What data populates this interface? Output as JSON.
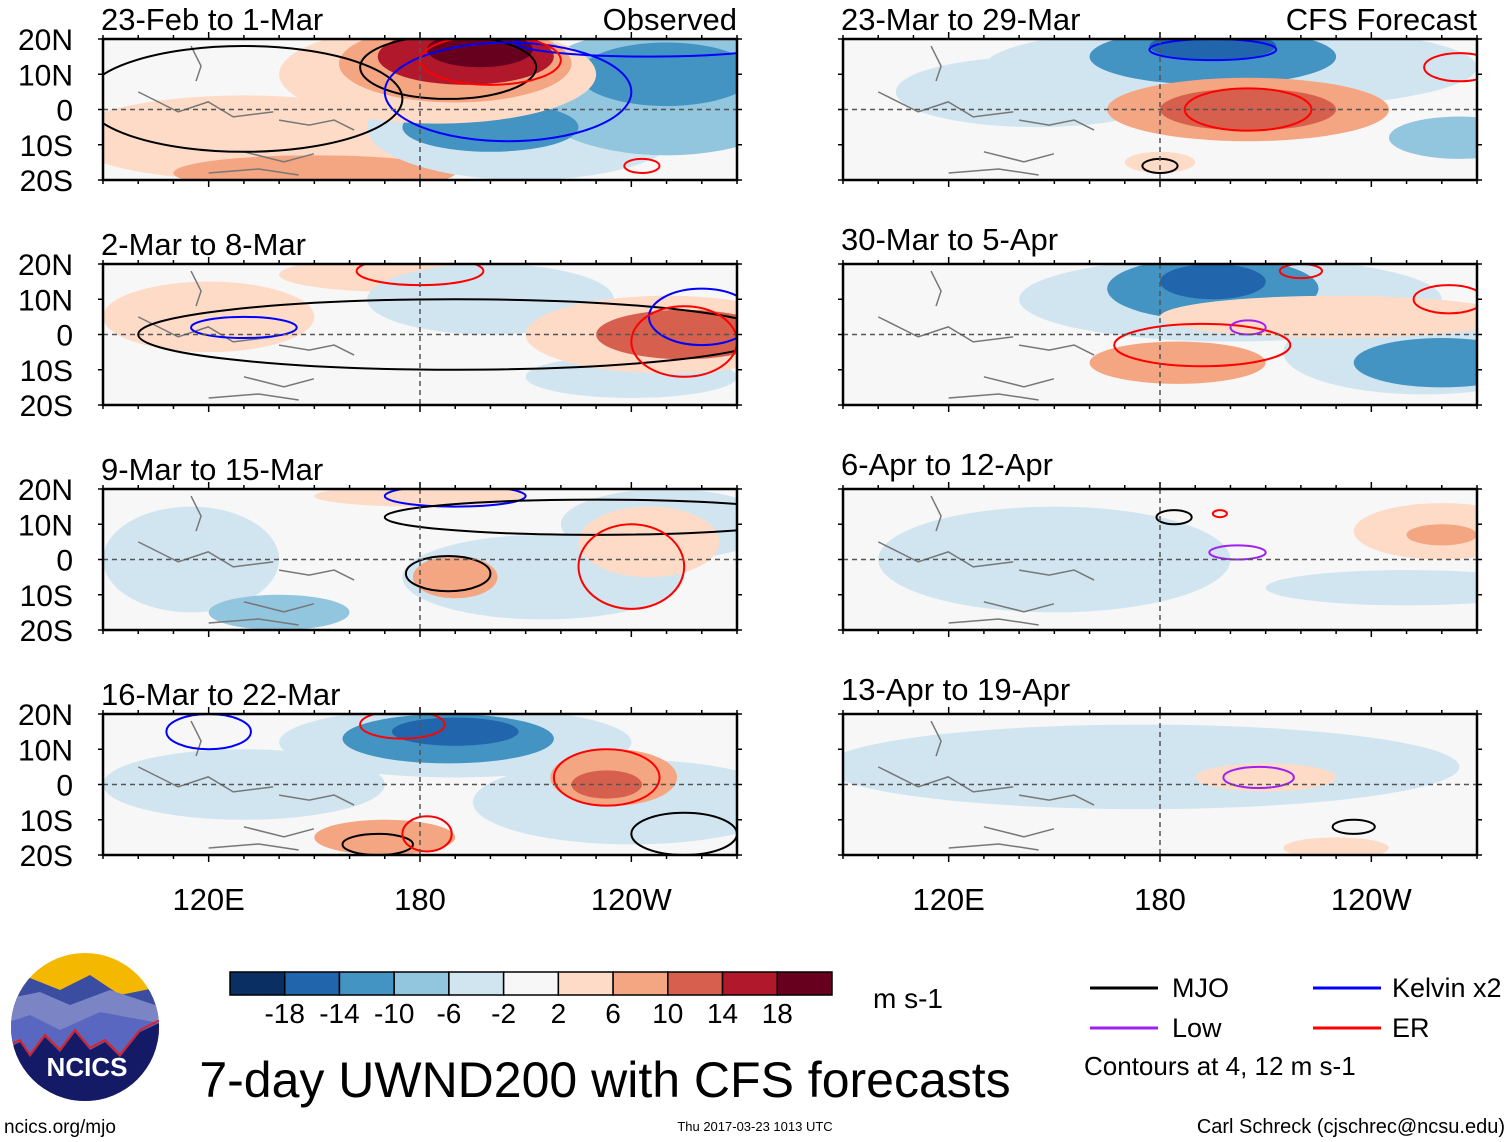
{
  "figure": {
    "title": "7-day UWND200 with CFS forecasts",
    "website": "ncics.org/mjo",
    "timestamp": "Thu 2017-03-23 1013 UTC",
    "author": "Carl Schreck (cjschrec@ncsu.edu)",
    "logo_text": "NCICS",
    "observed_label": "Observed",
    "forecast_label": "CFS Forecast"
  },
  "colorbar": {
    "units": "m s-1",
    "ticks": [
      "-18",
      "-14",
      "-10",
      "-6",
      "-2",
      "2",
      "6",
      "10",
      "14",
      "18"
    ],
    "bounds": [
      -18,
      -14,
      -10,
      -6,
      -2,
      2,
      6,
      10,
      14,
      18
    ],
    "colors": [
      "#0a2f63",
      "#2166ac",
      "#4393c3",
      "#92c5de",
      "#d1e5f0",
      "#f7f7f7",
      "#fddbc7",
      "#f4a582",
      "#d6604d",
      "#b2182b",
      "#67001f"
    ]
  },
  "legend": {
    "items": [
      {
        "label": "MJO",
        "color": "#000000"
      },
      {
        "label": "Kelvin x2",
        "color": "#0000ff"
      },
      {
        "label": "Low",
        "color": "#a020f0"
      },
      {
        "label": "ER",
        "color": "#ff0000"
      }
    ],
    "note": "Contours at 4, 12 m s-1"
  },
  "axes": {
    "lat_labels": [
      "20N",
      "10N",
      "0",
      "10S",
      "20S"
    ],
    "lat_values": [
      20,
      10,
      0,
      -10,
      -20
    ],
    "lon_labels": [
      "120E",
      "180",
      "120W"
    ],
    "lon_values": [
      120,
      180,
      240
    ],
    "lon_range": [
      90,
      270
    ],
    "lat_range": [
      -20,
      20
    ]
  },
  "chart_data": [
    {
      "type": "heatmap",
      "title": "23-Feb to 1-Mar",
      "column": "observed",
      "fill": [
        {
          "lon": 130,
          "lat": -8,
          "rlon": 50,
          "rlat": 12,
          "v": 4
        },
        {
          "lon": 150,
          "lat": -18,
          "rlon": 40,
          "rlat": 5,
          "v": 8
        },
        {
          "lon": 210,
          "lat": -5,
          "rlon": 45,
          "rlat": 15,
          "v": -6
        },
        {
          "lon": 250,
          "lat": 5,
          "rlon": 40,
          "rlat": 18,
          "v": -8
        },
        {
          "lon": 250,
          "lat": 10,
          "rlon": 25,
          "rlat": 9,
          "v": -14
        },
        {
          "lon": 200,
          "lat": -5,
          "rlon": 25,
          "rlat": 7,
          "v": -12
        },
        {
          "lon": 185,
          "lat": 10,
          "rlon": 45,
          "rlat": 14,
          "v": 4
        },
        {
          "lon": 190,
          "lat": 13,
          "rlon": 33,
          "rlat": 11,
          "v": 8
        },
        {
          "lon": 193,
          "lat": 15,
          "rlon": 25,
          "rlat": 8,
          "v": 14
        },
        {
          "lon": 197,
          "lat": 17,
          "rlon": 15,
          "rlat": 5,
          "v": 20
        }
      ],
      "contours": [
        {
          "kind": "MJO",
          "lon": 130,
          "lat": 3,
          "rlon": 45,
          "rlat": 15
        },
        {
          "kind": "MJO",
          "lon": 188,
          "lat": 12,
          "rlon": 25,
          "rlat": 9
        },
        {
          "kind": "Kelvin x2",
          "lon": 205,
          "lat": 5,
          "rlon": 35,
          "rlat": 14
        },
        {
          "kind": "Kelvin x2",
          "lon": 245,
          "lat": 19,
          "rlon": 38,
          "rlat": 4
        },
        {
          "kind": "ER",
          "lon": 200,
          "lat": 14,
          "rlon": 20,
          "rlat": 7
        },
        {
          "kind": "ER",
          "lon": 243,
          "lat": -16,
          "rlon": 5,
          "rlat": 2
        }
      ]
    },
    {
      "type": "heatmap",
      "title": "23-Mar to 29-Mar",
      "column": "forecast",
      "fill": [
        {
          "lon": 145,
          "lat": 5,
          "rlon": 40,
          "rlat": 10,
          "v": -4
        },
        {
          "lon": 200,
          "lat": 12,
          "rlon": 70,
          "rlat": 12,
          "v": -6
        },
        {
          "lon": 195,
          "lat": 15,
          "rlon": 35,
          "rlat": 8,
          "v": -12
        },
        {
          "lon": 195,
          "lat": 18,
          "rlon": 18,
          "rlat": 4,
          "v": -18
        },
        {
          "lon": 265,
          "lat": -8,
          "rlon": 20,
          "rlat": 6,
          "v": -8
        },
        {
          "lon": 205,
          "lat": 0,
          "rlon": 40,
          "rlat": 9,
          "v": 6
        },
        {
          "lon": 205,
          "lat": 0,
          "rlon": 25,
          "rlat": 6,
          "v": 12
        },
        {
          "lon": 180,
          "lat": -15,
          "rlon": 10,
          "rlat": 3,
          "v": 4
        }
      ],
      "contours": [
        {
          "kind": "ER",
          "lon": 205,
          "lat": 0,
          "rlon": 18,
          "rlat": 6
        },
        {
          "kind": "Kelvin x2",
          "lon": 195,
          "lat": 17,
          "rlon": 18,
          "rlat": 3
        },
        {
          "kind": "ER",
          "lon": 265,
          "lat": 12,
          "rlon": 10,
          "rlat": 4
        },
        {
          "kind": "MJO",
          "lon": 180,
          "lat": -16,
          "rlon": 5,
          "rlat": 2
        }
      ]
    },
    {
      "type": "heatmap",
      "title": "2-Mar to 8-Mar",
      "column": "observed",
      "fill": [
        {
          "lon": 120,
          "lat": 5,
          "rlon": 30,
          "rlat": 10,
          "v": 3
        },
        {
          "lon": 175,
          "lat": 17,
          "rlon": 35,
          "rlat": 5,
          "v": 4
        },
        {
          "lon": 200,
          "lat": 10,
          "rlon": 35,
          "rlat": 10,
          "v": -4
        },
        {
          "lon": 240,
          "lat": -12,
          "rlon": 30,
          "rlat": 6,
          "v": -6
        },
        {
          "lon": 250,
          "lat": 0,
          "rlon": 40,
          "rlat": 11,
          "v": 4
        },
        {
          "lon": 255,
          "lat": 0,
          "rlon": 25,
          "rlat": 7,
          "v": 10
        }
      ],
      "contours": [
        {
          "kind": "MJO",
          "lon": 190,
          "lat": 0,
          "rlon": 90,
          "rlat": 10
        },
        {
          "kind": "Kelvin x2",
          "lon": 260,
          "lat": 5,
          "rlon": 15,
          "rlat": 8
        },
        {
          "kind": "Kelvin x2",
          "lon": 130,
          "lat": 2,
          "rlon": 15,
          "rlat": 3
        },
        {
          "kind": "ER",
          "lon": 180,
          "lat": 18,
          "rlon": 18,
          "rlat": 4
        },
        {
          "kind": "ER",
          "lon": 255,
          "lat": -2,
          "rlon": 15,
          "rlat": 10
        }
      ]
    },
    {
      "type": "heatmap",
      "title": "30-Mar to 5-Apr",
      "column": "forecast",
      "fill": [
        {
          "lon": 200,
          "lat": 10,
          "rlon": 60,
          "rlat": 12,
          "v": -6
        },
        {
          "lon": 195,
          "lat": 13,
          "rlon": 30,
          "rlat": 9,
          "v": -12
        },
        {
          "lon": 195,
          "lat": 15,
          "rlon": 15,
          "rlat": 5,
          "v": -18
        },
        {
          "lon": 255,
          "lat": -5,
          "rlon": 40,
          "rlat": 12,
          "v": -6
        },
        {
          "lon": 260,
          "lat": -8,
          "rlon": 25,
          "rlat": 7,
          "v": -12
        },
        {
          "lon": 230,
          "lat": 5,
          "rlon": 50,
          "rlat": 6,
          "v": 3
        },
        {
          "lon": 185,
          "lat": -8,
          "rlon": 25,
          "rlat": 6,
          "v": 6
        }
      ],
      "contours": [
        {
          "kind": "ER",
          "lon": 192,
          "lat": -3,
          "rlon": 25,
          "rlat": 6
        },
        {
          "kind": "ER",
          "lon": 262,
          "lat": 10,
          "rlon": 10,
          "rlat": 4
        },
        {
          "kind": "Low",
          "lon": 205,
          "lat": 2,
          "rlon": 5,
          "rlat": 2
        },
        {
          "kind": "ER",
          "lon": 220,
          "lat": 18,
          "rlon": 6,
          "rlat": 2
        }
      ]
    },
    {
      "type": "heatmap",
      "title": "9-Mar to 15-Mar",
      "column": "observed",
      "fill": [
        {
          "lon": 115,
          "lat": 0,
          "rlon": 25,
          "rlat": 15,
          "v": -6
        },
        {
          "lon": 140,
          "lat": -15,
          "rlon": 20,
          "rlat": 5,
          "v": -10
        },
        {
          "lon": 215,
          "lat": -5,
          "rlon": 40,
          "rlat": 12,
          "v": -6
        },
        {
          "lon": 250,
          "lat": 10,
          "rlon": 30,
          "rlat": 10,
          "v": -4
        },
        {
          "lon": 180,
          "lat": 18,
          "rlon": 30,
          "rlat": 3,
          "v": 4
        },
        {
          "lon": 245,
          "lat": 5,
          "rlon": 20,
          "rlat": 10,
          "v": 4
        },
        {
          "lon": 190,
          "lat": -5,
          "rlon": 12,
          "rlat": 6,
          "v": 6
        }
      ],
      "contours": [
        {
          "kind": "Kelvin x2",
          "lon": 190,
          "lat": 18,
          "rlon": 20,
          "rlat": 3
        },
        {
          "kind": "MJO",
          "lon": 230,
          "lat": 12,
          "rlon": 60,
          "rlat": 5
        },
        {
          "kind": "ER",
          "lon": 240,
          "lat": -2,
          "rlon": 15,
          "rlat": 12
        },
        {
          "kind": "MJO",
          "lon": 188,
          "lat": -4,
          "rlon": 12,
          "rlat": 5
        }
      ]
    },
    {
      "type": "heatmap",
      "title": "6-Apr to 12-Apr",
      "column": "forecast",
      "fill": [
        {
          "lon": 150,
          "lat": 0,
          "rlon": 50,
          "rlat": 15,
          "v": -3
        },
        {
          "lon": 250,
          "lat": -8,
          "rlon": 40,
          "rlat": 5,
          "v": -3
        },
        {
          "lon": 260,
          "lat": 8,
          "rlon": 25,
          "rlat": 8,
          "v": 3
        },
        {
          "lon": 260,
          "lat": 7,
          "rlon": 10,
          "rlat": 3,
          "v": 6
        }
      ],
      "contours": [
        {
          "kind": "Low",
          "lon": 202,
          "lat": 2,
          "rlon": 8,
          "rlat": 2
        },
        {
          "kind": "MJO",
          "lon": 184,
          "lat": 12,
          "rlon": 5,
          "rlat": 2
        },
        {
          "kind": "ER",
          "lon": 197,
          "lat": 13,
          "rlon": 2,
          "rlat": 1
        }
      ]
    },
    {
      "type": "heatmap",
      "title": "16-Mar to 22-Mar",
      "column": "observed",
      "fill": [
        {
          "lon": 130,
          "lat": 0,
          "rlon": 40,
          "rlat": 10,
          "v": -4
        },
        {
          "lon": 190,
          "lat": 12,
          "rlon": 50,
          "rlat": 10,
          "v": -6
        },
        {
          "lon": 188,
          "lat": 13,
          "rlon": 30,
          "rlat": 7,
          "v": -14
        },
        {
          "lon": 190,
          "lat": 15,
          "rlon": 18,
          "rlat": 4,
          "v": -18
        },
        {
          "lon": 240,
          "lat": -5,
          "rlon": 45,
          "rlat": 12,
          "v": -6
        },
        {
          "lon": 235,
          "lat": 2,
          "rlon": 18,
          "rlat": 8,
          "v": 8
        },
        {
          "lon": 233,
          "lat": 0,
          "rlon": 10,
          "rlat": 4,
          "v": 12
        },
        {
          "lon": 170,
          "lat": -15,
          "rlon": 20,
          "rlat": 5,
          "v": 8
        }
      ],
      "contours": [
        {
          "kind": "ER",
          "lon": 233,
          "lat": 2,
          "rlon": 15,
          "rlat": 8
        },
        {
          "kind": "ER",
          "lon": 175,
          "lat": 17,
          "rlon": 12,
          "rlat": 4
        },
        {
          "kind": "Kelvin x2",
          "lon": 120,
          "lat": 15,
          "rlon": 12,
          "rlat": 5
        },
        {
          "kind": "MJO",
          "lon": 255,
          "lat": -14,
          "rlon": 15,
          "rlat": 6
        },
        {
          "kind": "MJO",
          "lon": 168,
          "lat": -17,
          "rlon": 10,
          "rlat": 3
        },
        {
          "kind": "ER",
          "lon": 182,
          "lat": -14,
          "rlon": 7,
          "rlat": 5
        }
      ]
    },
    {
      "type": "heatmap",
      "title": "13-Apr to 19-Apr",
      "column": "forecast",
      "fill": [
        {
          "lon": 175,
          "lat": 5,
          "rlon": 90,
          "rlat": 12,
          "v": -3
        },
        {
          "lon": 210,
          "lat": 2,
          "rlon": 20,
          "rlat": 4,
          "v": 3
        },
        {
          "lon": 230,
          "lat": -18,
          "rlon": 15,
          "rlat": 3,
          "v": 3
        }
      ],
      "contours": [
        {
          "kind": "Low",
          "lon": 208,
          "lat": 2,
          "rlon": 10,
          "rlat": 3
        },
        {
          "kind": "MJO",
          "lon": 235,
          "lat": -12,
          "rlon": 6,
          "rlat": 2
        }
      ]
    }
  ]
}
